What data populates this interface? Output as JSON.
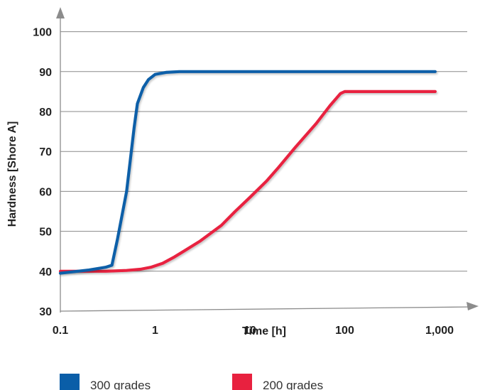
{
  "chart_data": {
    "type": "line",
    "xlabel": "Time [h]",
    "ylabel": "Hardness [Shore A]",
    "xscale": "log",
    "xlim": [
      0.1,
      1000
    ],
    "ylim": [
      30,
      100
    ],
    "x_ticks": [
      {
        "value": 0.1,
        "label": "0.1"
      },
      {
        "value": 1,
        "label": "1"
      },
      {
        "value": 10,
        "label": "10"
      },
      {
        "value": 100,
        "label": "100"
      },
      {
        "value": 1000,
        "label": "1,000"
      }
    ],
    "y_ticks": [
      {
        "value": 30,
        "label": "30"
      },
      {
        "value": 40,
        "label": "40"
      },
      {
        "value": 50,
        "label": "50"
      },
      {
        "value": 60,
        "label": "60"
      },
      {
        "value": 70,
        "label": "70"
      },
      {
        "value": 80,
        "label": "80"
      },
      {
        "value": 90,
        "label": "90"
      },
      {
        "value": 100,
        "label": "100"
      }
    ],
    "grid": "horizontal",
    "legend_position": "bottom",
    "series": [
      {
        "name": "300 grades",
        "color": "#0a5ea8",
        "points": [
          [
            0.1,
            39.5
          ],
          [
            0.2,
            40.3
          ],
          [
            0.3,
            41.0
          ],
          [
            0.35,
            41.5
          ],
          [
            0.4,
            48
          ],
          [
            0.5,
            60
          ],
          [
            0.6,
            76
          ],
          [
            0.65,
            82
          ],
          [
            0.75,
            86
          ],
          [
            0.85,
            88
          ],
          [
            1.0,
            89.3
          ],
          [
            1.3,
            89.8
          ],
          [
            1.8,
            90.0
          ],
          [
            10,
            90.0
          ],
          [
            100,
            90.0
          ],
          [
            900,
            90.0
          ]
        ]
      },
      {
        "name": "200 grades",
        "color": "#e8213f",
        "points": [
          [
            0.1,
            40.0
          ],
          [
            0.3,
            40.0
          ],
          [
            0.5,
            40.2
          ],
          [
            0.7,
            40.5
          ],
          [
            0.9,
            41.0
          ],
          [
            1.2,
            42.0
          ],
          [
            1.6,
            43.6
          ],
          [
            2,
            45.0
          ],
          [
            3,
            47.6
          ],
          [
            5,
            51.5
          ],
          [
            7,
            55
          ],
          [
            10,
            58.5
          ],
          [
            15,
            62.6
          ],
          [
            20,
            66
          ],
          [
            30,
            71
          ],
          [
            50,
            77
          ],
          [
            70,
            81.5
          ],
          [
            90,
            84.5
          ],
          [
            100,
            85.0
          ],
          [
            900,
            85.0
          ]
        ]
      }
    ]
  }
}
